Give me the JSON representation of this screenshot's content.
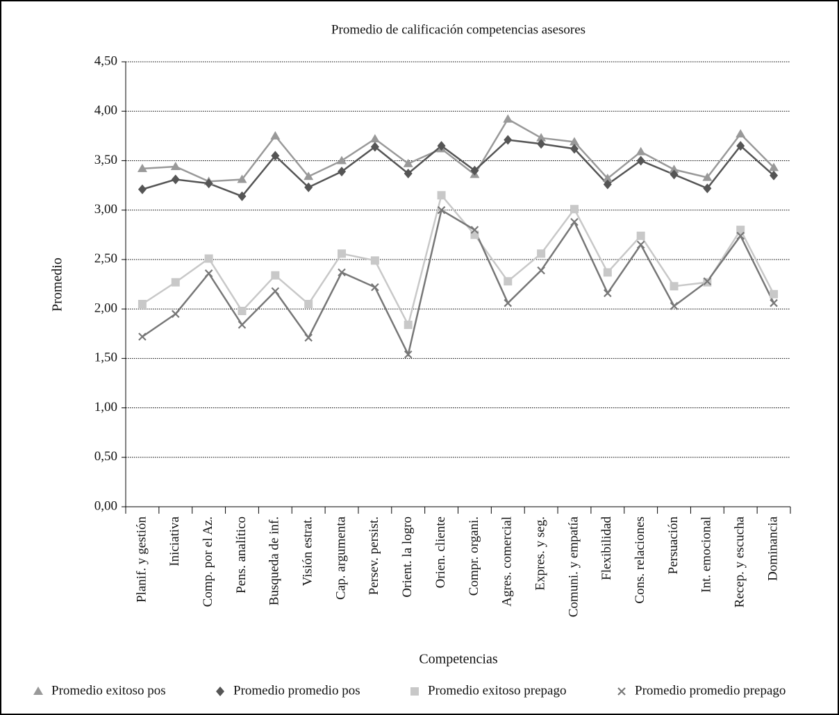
{
  "chart_data": {
    "type": "line",
    "title": "Promedio de calificación competencias asesores",
    "x_label": "Competencias",
    "y_label": "Promedio",
    "categories": [
      "Planif. y gestión",
      "Iniciativa",
      "Comp. por el Az.",
      "Pens. analítico",
      "Busqueda de inf.",
      "Visión estrat.",
      "Cap. argumenta",
      "Persev. persist.",
      "Orient. la logro",
      "Orien. cliente",
      "Compr. organi.",
      "Agres. comercial",
      "Expres. y seg.",
      "Comuni. y empatía",
      "Flexibilidad",
      "Cons. relaciones",
      "Persuación",
      "Int. emocional",
      "Recep. y escucha",
      "Dominancia"
    ],
    "series": [
      {
        "name": "Promedio exitoso pos",
        "color": "#999999",
        "marker": "triangle",
        "values": [
          3.42,
          3.44,
          3.29,
          3.31,
          3.75,
          3.34,
          3.5,
          3.72,
          3.47,
          3.62,
          3.36,
          3.92,
          3.73,
          3.69,
          3.32,
          3.59,
          3.41,
          3.33,
          3.77,
          3.43
        ]
      },
      {
        "name": "Promedio promedio pos",
        "color": "#555555",
        "marker": "diamond",
        "values": [
          3.21,
          3.31,
          3.27,
          3.14,
          3.55,
          3.23,
          3.39,
          3.64,
          3.37,
          3.65,
          3.4,
          3.71,
          3.67,
          3.62,
          3.26,
          3.5,
          3.36,
          3.22,
          3.65,
          3.35
        ]
      },
      {
        "name": "Promedio exitoso prepago",
        "color": "#c8c8c8",
        "marker": "square",
        "values": [
          2.05,
          2.27,
          2.51,
          1.98,
          2.34,
          2.05,
          2.56,
          2.49,
          1.84,
          3.15,
          2.75,
          2.28,
          2.56,
          3.01,
          2.37,
          2.74,
          2.23,
          2.27,
          2.8,
          2.15
        ]
      },
      {
        "name": "Promedio promedio prepago",
        "color": "#777777",
        "marker": "x",
        "values": [
          1.72,
          1.95,
          2.36,
          1.84,
          2.18,
          1.71,
          2.37,
          2.22,
          1.54,
          3.0,
          2.8,
          2.06,
          2.39,
          2.88,
          2.16,
          2.65,
          2.03,
          2.28,
          2.74,
          2.06
        ]
      }
    ],
    "ylim": [
      0,
      4.5
    ],
    "yticks": [
      {
        "value": 0,
        "label": "0,00"
      },
      {
        "value": 0.5,
        "label": "0,50"
      },
      {
        "value": 1,
        "label": "1,00"
      },
      {
        "value": 1.5,
        "label": "1,50"
      },
      {
        "value": 2,
        "label": "2,00"
      },
      {
        "value": 2.5,
        "label": "2,50"
      },
      {
        "value": 3,
        "label": "3,00"
      },
      {
        "value": 3.5,
        "label": "3,50"
      },
      {
        "value": 4,
        "label": "4,00"
      },
      {
        "value": 4.5,
        "label": "4,50"
      }
    ],
    "grid": true,
    "legend": "bottom"
  }
}
